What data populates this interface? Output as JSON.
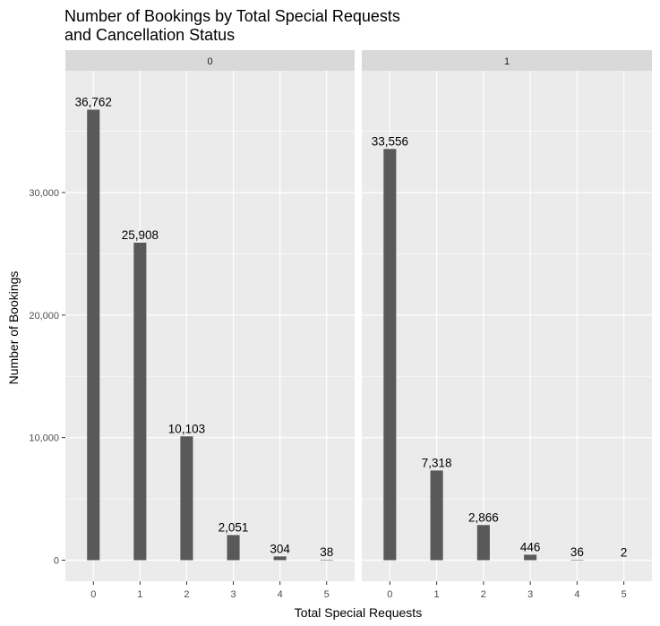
{
  "chart_data": {
    "type": "bar",
    "title_lines": [
      "Number of Bookings by Total Special Requests",
      "and Cancellation Status"
    ],
    "xlabel": "Total Special Requests",
    "ylabel": "Number of Bookings",
    "categories": [
      "0",
      "1",
      "2",
      "3",
      "4",
      "5"
    ],
    "ylim": [
      0,
      40000
    ],
    "yticks": [
      0,
      10000,
      20000,
      30000
    ],
    "ytick_labels": [
      "0",
      "10,000",
      "20,000",
      "30,000"
    ],
    "grid": true,
    "bar_color": "#595959",
    "panel_bg": "#ebebeb",
    "strip_bg": "#d9d9d9",
    "facets": [
      {
        "strip": "0",
        "values": [
          36762,
          25908,
          10103,
          2051,
          304,
          38
        ],
        "labels": [
          "36,762",
          "25,908",
          "10,103",
          "2,051",
          "304",
          "38"
        ]
      },
      {
        "strip": "1",
        "values": [
          33556,
          7318,
          2866,
          446,
          36,
          2
        ],
        "labels": [
          "33,556",
          "7,318",
          "2,866",
          "446",
          "36",
          "2"
        ]
      }
    ]
  }
}
